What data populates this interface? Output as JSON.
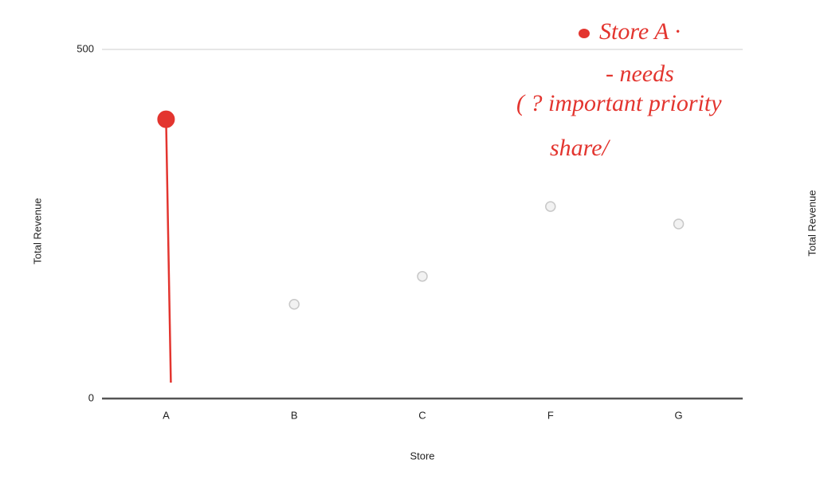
{
  "chart_data": {
    "type": "lollipop-scatter",
    "x_label": "Store",
    "y_label": "Total Revenue",
    "categories": [
      "A",
      "B",
      "C",
      "F",
      "G"
    ],
    "values": [
      400,
      135,
      175,
      275,
      250
    ],
    "point_colors": [
      "#e3352f",
      "#c8c8c8",
      "#c8c8c8",
      "#c8c8c8",
      "#c8c8c8"
    ],
    "stems": [
      true,
      false,
      false,
      false,
      false
    ],
    "ylim": [
      0,
      500
    ],
    "yticks": [
      0,
      500
    ],
    "grid": true,
    "annotations": [
      "Store A ·",
      "- needs",
      "( ? important priority",
      "share/"
    ],
    "annotation_color": "#e3352f"
  },
  "second_chart": {
    "y_label": "Total Revenue"
  }
}
